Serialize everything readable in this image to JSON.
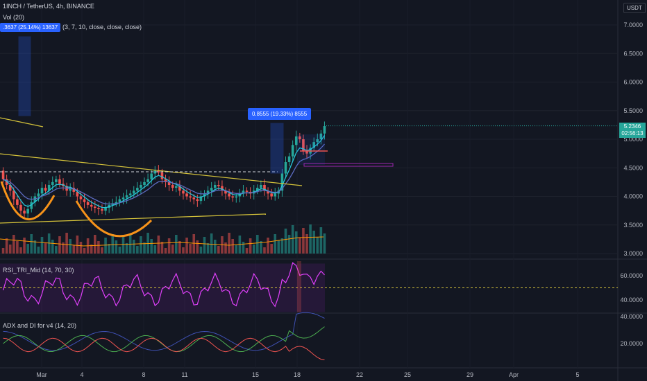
{
  "header": {
    "symbol": "1INCH / TetherUS, 4h, BINANCE",
    "vol_label": "Vol (20)",
    "indicator_params": "(3, 7, 10, close, close, close)",
    "currency": "USDT"
  },
  "measure_tags": {
    "left": ".3637 (25.14%) 13637",
    "right": "0.8555 (19.33%) 8555"
  },
  "last_price": {
    "value": "5.2346",
    "countdown": "02:56:13"
  },
  "rsi": {
    "label": "RSI_TRI_Mid (14, 70, 30)"
  },
  "adx": {
    "label": "ADX and DI for v4 (14, 20)"
  },
  "colors": {
    "background": "#131722",
    "up": "#26a69a",
    "down": "#ef5350",
    "trendline": "#d4c23a",
    "cup": "#f7931a",
    "rsi_line": "#e040fb",
    "adx_green": "#4caf50",
    "adx_blue": "#3f51b5",
    "adx_red": "#ef5350"
  },
  "chart_data": [
    {
      "type": "candlestick",
      "yaxis_ticks": [
        "7.0000",
        "6.5000",
        "6.0000",
        "5.5000",
        "5.0000",
        "4.5000",
        "4.0000",
        "3.5000",
        "3.0000"
      ],
      "ylim": [
        2.95,
        7.3
      ],
      "xaxis_ticks": [
        "Mar",
        "4",
        "8",
        "11",
        "15",
        "18",
        "22",
        "25",
        "29",
        "Apr",
        "5"
      ],
      "close": [
        4.3,
        4.2,
        4.1,
        3.95,
        3.85,
        3.75,
        3.7,
        3.78,
        3.9,
        4.0,
        4.05,
        4.15,
        4.1,
        4.2,
        4.25,
        4.3,
        4.22,
        4.18,
        4.1,
        4.15,
        4.08,
        4.0,
        3.95,
        3.9,
        3.85,
        3.82,
        3.8,
        3.78,
        3.75,
        3.8,
        3.85,
        3.88,
        3.9,
        3.95,
        3.98,
        4.02,
        4.05,
        4.1,
        4.15,
        4.2,
        4.25,
        4.3,
        4.4,
        4.45,
        4.42,
        4.3,
        4.25,
        4.2,
        4.15,
        4.18,
        4.1,
        4.05,
        4.0,
        3.98,
        3.95,
        3.92,
        4.0,
        4.05,
        4.1,
        4.15,
        4.2,
        4.18,
        4.1,
        4.05,
        4.0,
        3.98,
        4.0,
        4.05,
        4.1,
        4.08,
        4.05,
        4.1,
        4.15,
        4.2,
        4.1,
        4.05,
        4.0,
        4.05,
        4.1,
        4.4,
        4.6,
        4.7,
        4.9,
        5.05,
        5.0,
        4.8,
        4.75,
        4.85,
        4.95,
        5.0,
        5.1,
        5.23
      ],
      "volume_scale": [
        0.3,
        1.0
      ],
      "annotations": [
        "cup-and-handle",
        "descending trendline",
        "measure range"
      ]
    },
    {
      "type": "line",
      "name": "RSI_TRI_Mid (14, 70, 30)",
      "yaxis_ticks": [
        "60.0000",
        "40.0000"
      ],
      "ylim": [
        28,
        75
      ],
      "midline": 50
    },
    {
      "type": "line",
      "name": "ADX and DI for v4 (14, 20)",
      "yaxis_ticks": [
        "40.0000",
        "20.0000"
      ],
      "ylim": [
        0,
        42
      ]
    }
  ]
}
